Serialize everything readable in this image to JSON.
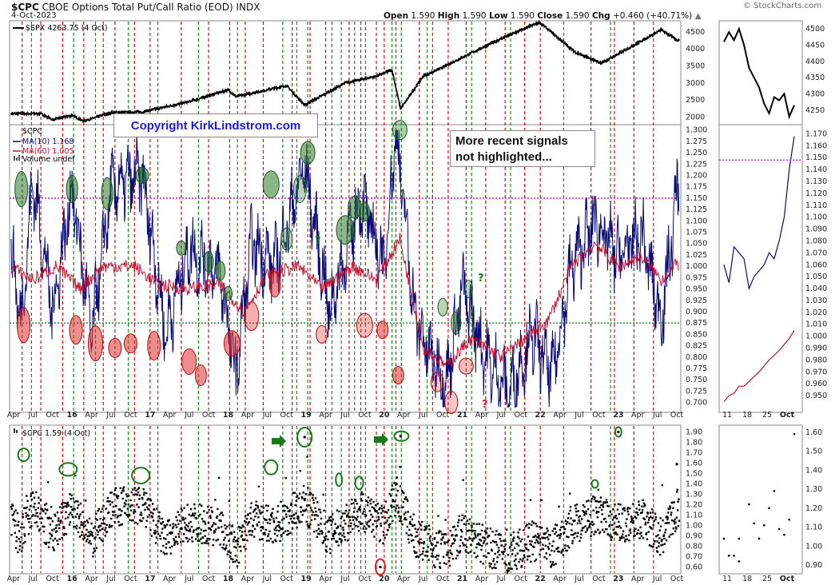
{
  "header": {
    "symbol": "$CPC",
    "description": "CBOE Options Total Put/Call Ratio (EOD)",
    "exchange": "INDX",
    "date": "4-Oct-2023",
    "open_label": "Open",
    "open_value": "1.590",
    "high_label": "High",
    "high_value": "1.590",
    "low_label": "Low",
    "low_value": "1.590",
    "close_label": "Close",
    "close_value": "1.590",
    "chg_label": "Chg",
    "chg_value": "+0.460 (+40.71%)",
    "chg_arrow": "▲",
    "brand": "© StockCharts.com"
  },
  "annotations": {
    "copyright": "Copyright KirkLindstrom.com",
    "note_line1": "More recent signals",
    "note_line2": "not highlighted...",
    "question_mark": "?"
  },
  "legends": {
    "spx": "$SPX 4263.75 (4 Oct)",
    "cpc": "$CPC",
    "ma10": "MA(10) 1.168",
    "ma60": "MA(60) 1.005",
    "volume": "Volume undef",
    "lower": "$CPC 1.59 (4 Oct)"
  },
  "colors": {
    "spx_line": "#000000",
    "ma10_line": "#0a0a7a",
    "ma60_line": "#c8102e",
    "green_signal": "#1a7a1a",
    "red_signal": "#e02020",
    "magenta_ref": "#d000d0",
    "green_ref": "#1a7a1a"
  },
  "chart_data": [
    {
      "type": "line",
      "name": "S&P 500 ($SPX)",
      "x_labels": [
        "Apr",
        "Jul",
        "Oct",
        "16",
        "Apr",
        "Jul",
        "Oct",
        "17",
        "Apr",
        "Jul",
        "Oct",
        "18",
        "Apr",
        "Jul",
        "Oct",
        "19",
        "Apr",
        "Jul",
        "Oct",
        "20",
        "Apr",
        "Jul",
        "Oct",
        "21",
        "Apr",
        "Jul",
        "Oct",
        "22",
        "Apr",
        "Jul",
        "Oct",
        "23",
        "Apr",
        "Jul",
        "Oct"
      ],
      "y_ticks": [
        2000,
        2500,
        3000,
        3500,
        4000,
        4500
      ],
      "ylim": [
        1800,
        4800
      ],
      "series": [
        {
          "name": "$SPX",
          "x": [
            2015.25,
            2015.6,
            2015.75,
            2016.0,
            2016.15,
            2016.5,
            2016.9,
            2017.5,
            2018.0,
            2018.1,
            2018.75,
            2018.98,
            2019.5,
            2019.9,
            2020.1,
            2020.21,
            2020.5,
            2020.7,
            2021.0,
            2021.5,
            2021.99,
            2022.45,
            2022.78,
            2023.0,
            2023.55,
            2023.75
          ],
          "values": [
            2100,
            2100,
            1920,
            2050,
            1880,
            2130,
            2150,
            2450,
            2800,
            2600,
            2920,
            2350,
            3000,
            3200,
            3380,
            2240,
            3200,
            3400,
            3750,
            4300,
            4780,
            3900,
            3580,
            3850,
            4560,
            4263
          ]
        }
      ]
    },
    {
      "type": "line",
      "name": "$CPC moving averages",
      "y_ticks": [
        0.7,
        0.725,
        0.75,
        0.775,
        0.8,
        0.825,
        0.85,
        0.875,
        0.9,
        0.925,
        0.95,
        0.975,
        1.0,
        1.025,
        1.05,
        1.075,
        1.1,
        1.125,
        1.15,
        1.175,
        1.2,
        1.225,
        1.25,
        1.275,
        1.3
      ],
      "ylim": [
        0.68,
        1.31
      ],
      "reference_lines": [
        1.15,
        0.875
      ],
      "series": [
        {
          "name": "MA(10)",
          "x": [
            2015.2,
            2015.35,
            2015.5,
            2015.75,
            2016.0,
            2016.25,
            2016.5,
            2016.9,
            2017.2,
            2017.5,
            2017.9,
            2018.1,
            2018.3,
            2018.6,
            2018.98,
            2019.3,
            2019.7,
            2020.0,
            2020.15,
            2020.4,
            2020.6,
            2020.8,
            2021.0,
            2021.3,
            2021.6,
            2021.9,
            2022.15,
            2022.4,
            2022.7,
            2023.0,
            2023.3,
            2023.55,
            2023.7,
            2023.75
          ],
          "values": [
            1.05,
            0.88,
            1.19,
            0.9,
            1.17,
            0.85,
            1.17,
            1.2,
            0.85,
            1.04,
            0.98,
            0.76,
            1.05,
            1.0,
            1.22,
            0.9,
            1.15,
            1.0,
            1.3,
            0.88,
            0.8,
            0.75,
            0.95,
            0.8,
            0.72,
            0.85,
            0.76,
            1.0,
            1.1,
            1.02,
            1.07,
            0.88,
            1.08,
            1.17
          ]
        },
        {
          "name": "MA(60)",
          "x": [
            2015.2,
            2015.5,
            2015.8,
            2016.1,
            2016.4,
            2016.8,
            2017.1,
            2017.5,
            2017.9,
            2018.2,
            2018.5,
            2018.9,
            2019.2,
            2019.6,
            2019.9,
            2020.2,
            2020.5,
            2020.8,
            2021.1,
            2021.5,
            2021.8,
            2022.1,
            2022.4,
            2022.7,
            2023.0,
            2023.3,
            2023.55,
            2023.75
          ],
          "values": [
            1.0,
            0.97,
            1.0,
            0.95,
            1.0,
            1.0,
            0.96,
            0.95,
            0.96,
            0.9,
            0.98,
            1.0,
            0.95,
            1.0,
            0.97,
            1.06,
            0.82,
            0.78,
            0.84,
            0.8,
            0.84,
            0.88,
            1.0,
            1.05,
            1.0,
            1.02,
            0.97,
            1.005
          ]
        }
      ]
    },
    {
      "type": "scatter",
      "name": "$CPC daily",
      "y_ticks": [
        0.6,
        0.7,
        0.8,
        0.9,
        1.0,
        1.1,
        1.2,
        1.3,
        1.4,
        1.5,
        1.6,
        1.7,
        1.8,
        1.9
      ],
      "ylim": [
        0.55,
        1.95
      ],
      "notable_points": [
        {
          "x": 2018.98,
          "value": 1.85
        },
        {
          "x": 2020.21,
          "value": 1.86
        },
        {
          "x": 2023.0,
          "value": 1.9
        },
        {
          "x": 2019.95,
          "value": 0.6
        },
        {
          "x": 2023.75,
          "value": 1.59
        }
      ]
    },
    {
      "type": "line",
      "name": "Zoom panels",
      "x_labels": [
        "11",
        "18",
        "25",
        "Oct"
      ],
      "spx_ticks": [
        4250,
        4300,
        4350,
        4400,
        4450,
        4500
      ],
      "ma_ticks": [
        0.95,
        0.96,
        0.97,
        0.98,
        0.99,
        1.0,
        1.01,
        1.02,
        1.03,
        1.04,
        1.05,
        1.06,
        1.07,
        1.08,
        1.09,
        1.1,
        1.11,
        1.12,
        1.13,
        1.14,
        1.15,
        1.16,
        1.17
      ],
      "cpc_ticks": [
        0.9,
        1.0,
        1.1,
        1.2,
        1.3,
        1.4,
        1.5,
        1.6
      ],
      "spx_values": [
        4460,
        4490,
        4465,
        4500,
        4450,
        4380,
        4350,
        4320,
        4270,
        4240,
        4290,
        4280,
        4300,
        4230,
        4265
      ],
      "ma10_values": [
        1.06,
        1.045,
        1.075,
        1.07,
        1.065,
        1.04,
        1.05,
        1.055,
        1.06,
        1.07,
        1.065,
        1.08,
        1.1,
        1.14,
        1.168
      ],
      "ma60_values": [
        0.945,
        0.95,
        0.952,
        0.958,
        0.958,
        0.962,
        0.966,
        0.97,
        0.975,
        0.98,
        0.984,
        0.988,
        0.993,
        0.998,
        1.005
      ]
    }
  ]
}
